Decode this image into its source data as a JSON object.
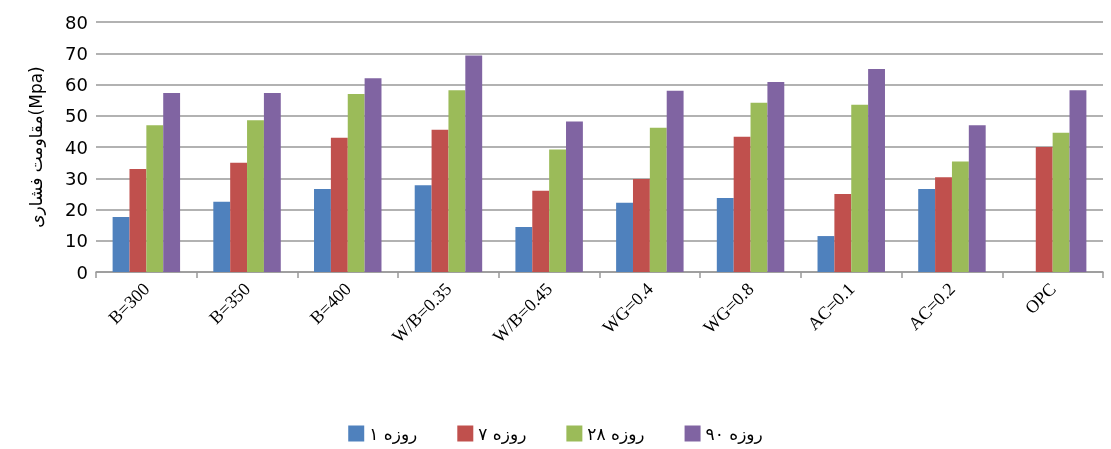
{
  "chart_data": {
    "type": "bar",
    "ylabel": "مقاومت فشاری(Mpa)",
    "categories": [
      "B=300",
      "B=350",
      "B=400",
      "W/B=0.35",
      "W/B=0.45",
      "WG=0.4",
      "WG=0.8",
      "AC=0.1",
      "AC=0.2",
      "OPC"
    ],
    "series": [
      {
        "name": "۱ روزه",
        "color": "#4f81bd",
        "values": [
          17.6,
          22.5,
          26.6,
          27.8,
          14.4,
          22.2,
          23.7,
          11.5,
          26.6,
          null
        ]
      },
      {
        "name": "۷ روزه",
        "color": "#c0504d",
        "values": [
          33,
          35,
          43,
          45.5,
          26,
          29.8,
          43.3,
          25,
          30.3,
          40
        ]
      },
      {
        "name": "۲۸ روزه",
        "color": "#9bbb59",
        "values": [
          47,
          48.6,
          57,
          58.2,
          39.2,
          46.2,
          54.2,
          53.5,
          35.4,
          44.6
        ]
      },
      {
        "name": "۹۰ روزه",
        "color": "#8064a2",
        "values": [
          57.3,
          57.3,
          62,
          69.3,
          48.2,
          58,
          60.8,
          65,
          47,
          58.2
        ]
      }
    ],
    "ylim": [
      0,
      80
    ],
    "yticks": [
      0,
      10,
      20,
      30,
      40,
      50,
      60,
      70,
      80
    ],
    "grid": "y",
    "legend": "bottom"
  }
}
